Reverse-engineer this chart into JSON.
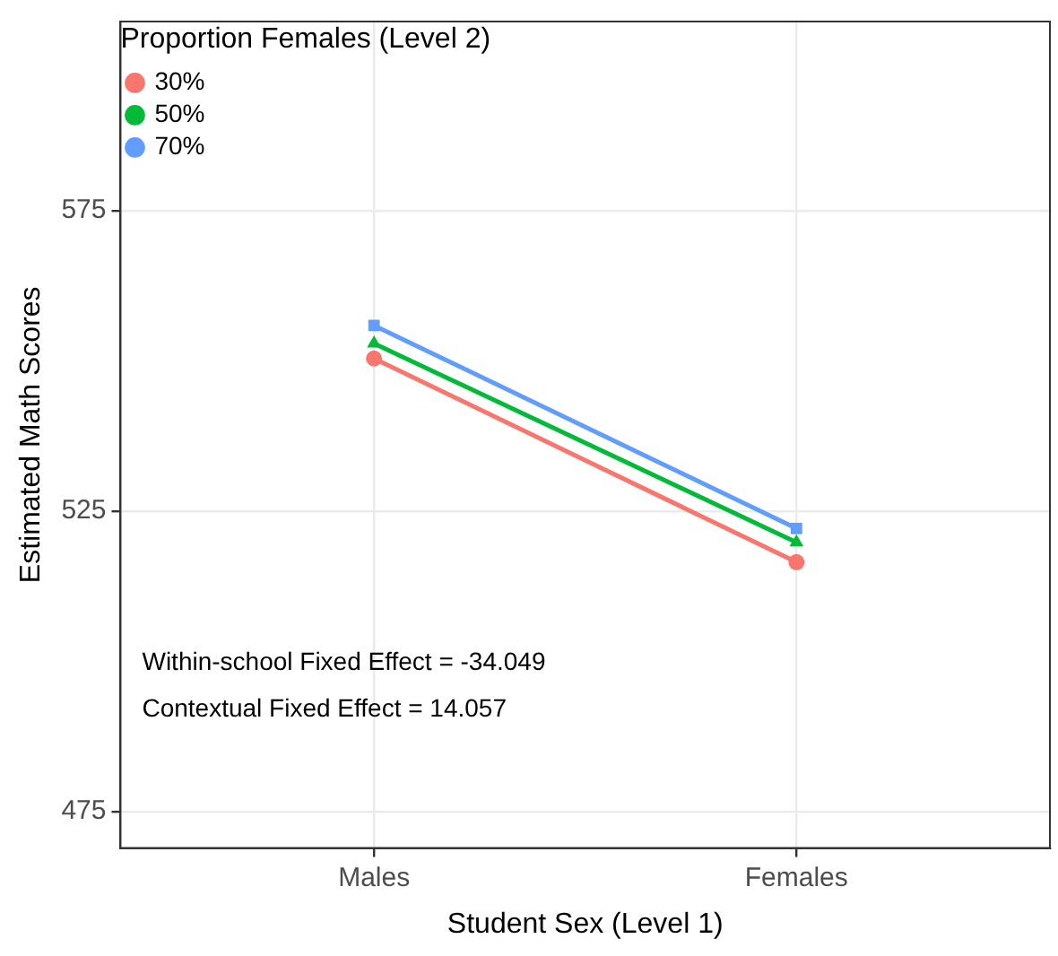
{
  "chart_data": {
    "type": "line",
    "xlabel": "Student Sex (Level 1)",
    "ylabel": "Estimated Math Scores",
    "legend_title": "Proportion Females (Level 2)",
    "categories": [
      "Males",
      "Females"
    ],
    "series": [
      {
        "name": "30%",
        "color": "#f8766d",
        "marker": "circle",
        "values": [
          550.4,
          516.5
        ]
      },
      {
        "name": "50%",
        "color": "#00ba38",
        "marker": "triangle",
        "values": [
          552.9,
          519.8
        ]
      },
      {
        "name": "70%",
        "color": "#619cff",
        "marker": "square",
        "values": [
          555.9,
          522.1
        ]
      }
    ],
    "ylim": [
      468.9,
      606.5
    ],
    "yticks": [
      475,
      525,
      575
    ],
    "grid": true,
    "legend": "top left",
    "line_style": "solid",
    "annotations": [
      "Within-school Fixed Effect = -34.049",
      "Contextual Fixed Effect = 14.057"
    ]
  }
}
